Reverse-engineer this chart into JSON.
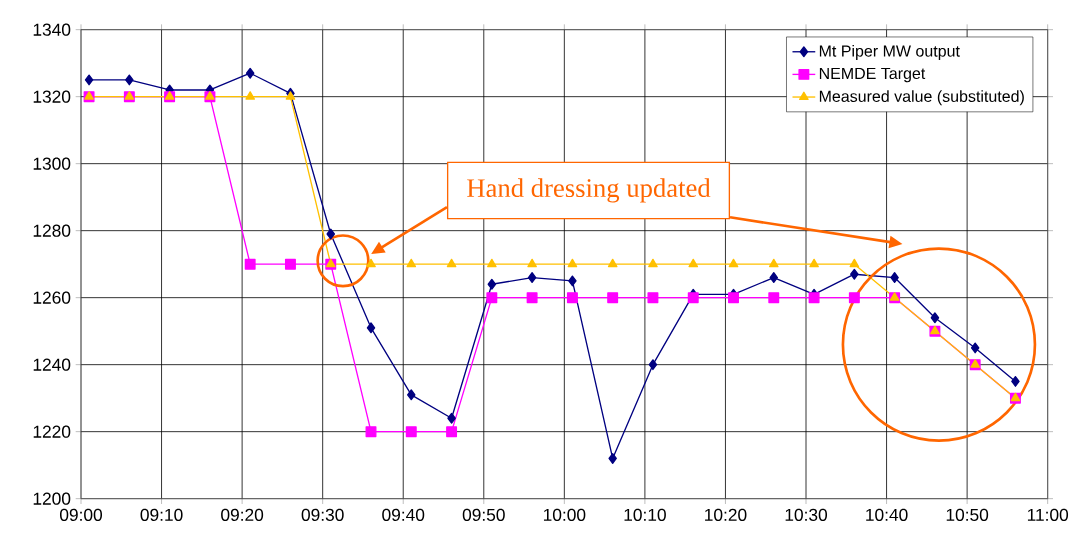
{
  "chart_data": {
    "type": "line",
    "x": [
      9.0167,
      9.1,
      9.1833,
      9.2667,
      9.35,
      9.4333,
      9.5167,
      9.6,
      9.6833,
      9.7667,
      9.85,
      9.9333,
      10.0167,
      10.1,
      10.1833,
      10.2667,
      10.35,
      10.4333,
      10.5167,
      10.6,
      10.6833,
      10.7667,
      10.85,
      10.9333
    ],
    "series": [
      {
        "name": "Mt Piper MW output",
        "color": "#000080",
        "marker": "diamond",
        "values": [
          1325,
          1325,
          1322,
          1322,
          1327,
          1321,
          1279,
          1251,
          1231,
          1224,
          1264,
          1266,
          1265,
          1212,
          1240,
          1261,
          1261,
          1266,
          1261,
          1267,
          1266,
          1254,
          1245,
          1235
        ]
      },
      {
        "name": "NEMDE Target",
        "color": "#ff00ff",
        "marker": "square",
        "values": [
          1320,
          1320,
          1320,
          1320,
          1270,
          1270,
          1270,
          1220,
          1220,
          1220,
          1260,
          1260,
          1260,
          1260,
          1260,
          1260,
          1260,
          1260,
          1260,
          1260,
          1260,
          1250,
          1240,
          1230
        ]
      },
      {
        "name": "Measured value (substituted)",
        "color": "#ffc000",
        "marker": "triangle",
        "values": [
          1320,
          1320,
          1320,
          1320,
          1320,
          1320,
          1270,
          1270,
          1270,
          1270,
          1270,
          1270,
          1270,
          1270,
          1270,
          1270,
          1270,
          1270,
          1270,
          1270,
          1260,
          1250,
          1240,
          1230
        ]
      }
    ],
    "xlim": [
      9,
      11
    ],
    "xticks": [
      {
        "value": 9,
        "label": "09:00"
      },
      {
        "value": 9.16667,
        "label": "09:10"
      },
      {
        "value": 9.33333,
        "label": "09:20"
      },
      {
        "value": 9.5,
        "label": "09:30"
      },
      {
        "value": 9.66667,
        "label": "09:40"
      },
      {
        "value": 9.83333,
        "label": "09:50"
      },
      {
        "value": 10,
        "label": "10:00"
      },
      {
        "value": 10.16667,
        "label": "10:10"
      },
      {
        "value": 10.33333,
        "label": "10:20"
      },
      {
        "value": 10.5,
        "label": "10:30"
      },
      {
        "value": 10.66667,
        "label": "10:40"
      },
      {
        "value": 10.83333,
        "label": "10:50"
      },
      {
        "value": 11,
        "label": "11:00"
      }
    ],
    "ylim": [
      1200,
      1340
    ],
    "yticks": [
      1200,
      1220,
      1240,
      1260,
      1280,
      1300,
      1320,
      1340
    ],
    "grid": true,
    "legend": "top right",
    "annotations": [
      "Hand dressing updated"
    ]
  }
}
